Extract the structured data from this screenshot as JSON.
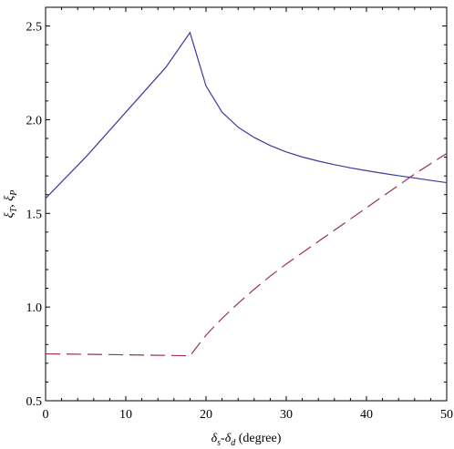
{
  "chart_data": {
    "type": "line",
    "xlabel_parts": {
      "d1": "δ",
      "s1": "s",
      "dash": "-",
      "d2": "δ",
      "s2": "d",
      "unit": " (degree)"
    },
    "ylabel_parts": {
      "a": "ξ",
      "as": "T",
      "sep": ", ",
      "b": "ξ",
      "bs": "P"
    },
    "xlim": [
      0,
      50
    ],
    "ylim": [
      0.5,
      2.6
    ],
    "xticks": [
      0,
      10,
      20,
      30,
      40,
      50
    ],
    "xtick_labels": [
      "0",
      "10",
      "20",
      "30",
      "40",
      "50"
    ],
    "yticks": [
      0.5,
      1.0,
      1.5,
      2.0,
      2.5
    ],
    "ytick_labels": [
      "0.5",
      "1.0",
      "1.5",
      "2.0",
      "2.5"
    ],
    "grid": false,
    "series": [
      {
        "style": "solid",
        "color": "#3b3b9f",
        "points": [
          [
            0,
            1.58
          ],
          [
            5,
            1.8
          ],
          [
            10,
            2.04
          ],
          [
            15,
            2.28
          ],
          [
            18,
            2.465
          ],
          [
            20,
            2.18
          ],
          [
            22,
            2.04
          ],
          [
            24,
            1.96
          ],
          [
            26,
            1.905
          ],
          [
            28,
            1.862
          ],
          [
            30,
            1.828
          ],
          [
            32,
            1.801
          ],
          [
            34,
            1.779
          ],
          [
            36,
            1.76
          ],
          [
            38,
            1.743
          ],
          [
            40,
            1.728
          ],
          [
            42,
            1.714
          ],
          [
            44,
            1.701
          ],
          [
            46,
            1.689
          ],
          [
            48,
            1.676
          ],
          [
            50,
            1.664
          ]
        ]
      },
      {
        "style": "dashed",
        "color": "#9b3050",
        "points": [
          [
            0,
            0.75
          ],
          [
            5,
            0.748
          ],
          [
            10,
            0.745
          ],
          [
            15,
            0.742
          ],
          [
            18,
            0.74
          ],
          [
            20,
            0.85
          ],
          [
            22,
            0.94
          ],
          [
            24,
            1.02
          ],
          [
            26,
            1.095
          ],
          [
            28,
            1.165
          ],
          [
            30,
            1.23
          ],
          [
            32,
            1.29
          ],
          [
            34,
            1.35
          ],
          [
            36,
            1.41
          ],
          [
            38,
            1.47
          ],
          [
            40,
            1.53
          ],
          [
            42,
            1.59
          ],
          [
            44,
            1.65
          ],
          [
            46,
            1.71
          ],
          [
            48,
            1.765
          ],
          [
            50,
            1.82
          ]
        ]
      }
    ]
  }
}
